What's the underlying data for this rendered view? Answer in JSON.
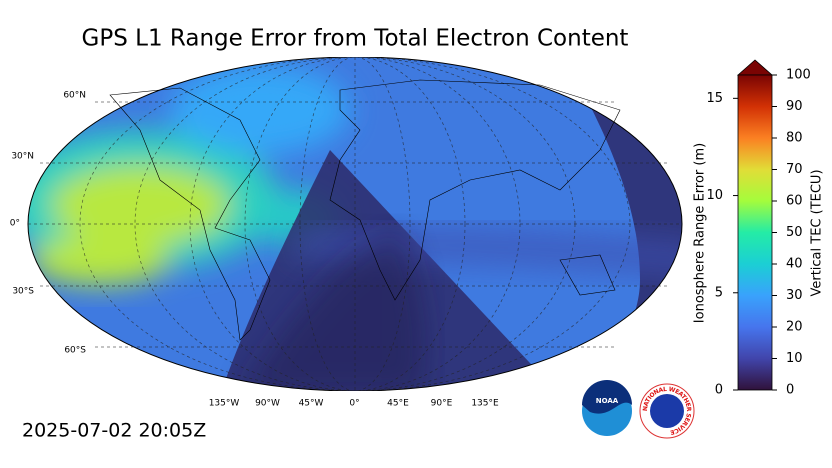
{
  "title": "GPS L1 Range Error from Total Electron Content",
  "timestamp": "2025-07-02 20:05Z",
  "map": {
    "lat_labels": [
      "60°N",
      "30°N",
      "0°",
      "30°S",
      "60°S"
    ],
    "lon_labels": [
      "135°W",
      "90°W",
      "45°W",
      "0°",
      "45°E",
      "90°E",
      "135°E"
    ]
  },
  "colorbar": {
    "left_label": "Ionosphere Range Error (m)",
    "right_label": "Vertical TEC (TECU)",
    "left_lim": [
      0,
      16.2
    ],
    "left_ticks": [
      0,
      5,
      10,
      15
    ],
    "right_lim": [
      0,
      100
    ],
    "right_ticks": [
      0,
      10,
      20,
      30,
      40,
      50,
      60,
      70,
      80,
      90,
      100
    ]
  },
  "logos": {
    "noaa": "NOAA",
    "nws": "NATIONAL WEATHER SERVICE"
  }
}
